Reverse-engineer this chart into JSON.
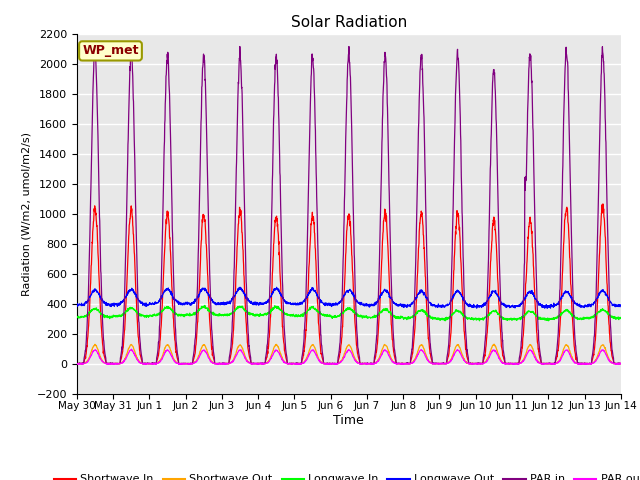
{
  "title": "Solar Radiation",
  "ylabel": "Radiation (W/m2, umol/m2/s)",
  "xlabel": "Time",
  "ylim": [
    -200,
    2200
  ],
  "background_color": "#e8e8e8",
  "grid_color": "white",
  "legend_labels": [
    "Shortwave In",
    "Shortwave Out",
    "Longwave In",
    "Longwave Out",
    "PAR in",
    "PAR out"
  ],
  "legend_colors": [
    "red",
    "orange",
    "lime",
    "blue",
    "purple",
    "#ff00ff"
  ],
  "station_label": "WP_met",
  "tick_dates": [
    "May 30",
    "May 31",
    "Jun 1",
    "Jun 2",
    "Jun 3",
    "Jun 4",
    "Jun 5",
    "Jun 6",
    "Jun 7",
    "Jun 8",
    "Jun 9",
    "Jun 10",
    "Jun 11",
    "Jun 12",
    "Jun 13",
    "Jun 14"
  ],
  "num_days": 15
}
